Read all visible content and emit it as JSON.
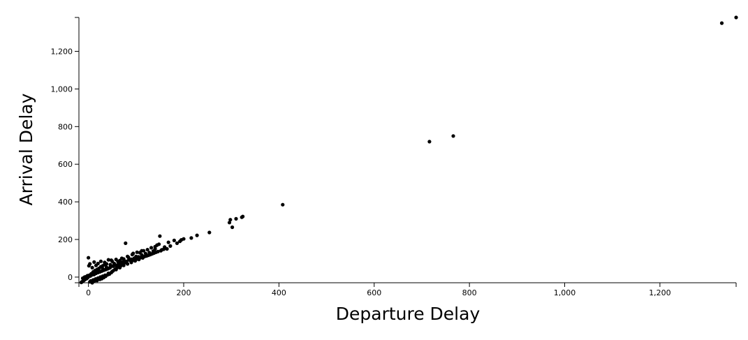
{
  "chart_data": {
    "type": "scatter",
    "title": "",
    "xlabel": "Departure Delay",
    "ylabel": "Arrival Delay",
    "xlim": [
      -20,
      1360
    ],
    "ylim": [
      -30,
      1380
    ],
    "x_ticks": [
      0,
      200,
      400,
      600,
      800,
      1000,
      1200
    ],
    "x_tick_labels": [
      "0",
      "200",
      "400",
      "600",
      "800",
      "1,000",
      "1,200"
    ],
    "y_ticks": [
      0,
      200,
      400,
      600,
      800,
      1000,
      1200
    ],
    "y_tick_labels": [
      "0",
      "200",
      "400",
      "600",
      "800",
      "1,000",
      "1,200"
    ],
    "grid": false,
    "legend": "none",
    "point_color": "#000000",
    "points": [
      [
        1360,
        1380
      ],
      [
        1330,
        1350
      ],
      [
        766,
        750
      ],
      [
        716,
        720
      ],
      [
        408,
        385
      ],
      [
        324,
        322
      ],
      [
        322,
        318
      ],
      [
        310,
        310
      ],
      [
        298,
        305
      ],
      [
        302,
        265
      ],
      [
        296,
        290
      ],
      [
        254,
        237
      ],
      [
        228,
        222
      ],
      [
        216,
        208
      ],
      [
        200,
        203
      ],
      [
        195,
        198
      ],
      [
        192,
        190
      ],
      [
        186,
        180
      ],
      [
        180,
        195
      ],
      [
        168,
        185
      ],
      [
        150,
        218
      ],
      [
        148,
        175
      ],
      [
        144,
        170
      ],
      [
        140,
        150
      ],
      [
        136,
        138
      ],
      [
        128,
        130
      ],
      [
        120,
        125
      ],
      [
        112,
        118
      ],
      [
        105,
        108
      ],
      [
        100,
        110
      ],
      [
        96,
        100
      ],
      [
        90,
        95
      ],
      [
        85,
        92
      ],
      [
        78,
        180
      ],
      [
        76,
        85
      ],
      [
        72,
        80
      ],
      [
        68,
        74
      ],
      [
        64,
        68
      ],
      [
        60,
        64
      ],
      [
        56,
        62
      ],
      [
        52,
        58
      ],
      [
        48,
        90
      ],
      [
        46,
        52
      ],
      [
        44,
        48
      ],
      [
        40,
        44
      ],
      [
        36,
        40
      ],
      [
        32,
        36
      ],
      [
        28,
        32
      ],
      [
        24,
        28
      ],
      [
        20,
        24
      ],
      [
        16,
        20
      ],
      [
        12,
        14
      ],
      [
        8,
        12
      ],
      [
        4,
        6
      ],
      [
        0,
        103
      ],
      [
        0,
        2
      ],
      [
        -2,
        -4
      ],
      [
        -4,
        -8
      ],
      [
        -6,
        -10
      ],
      [
        -8,
        -14
      ],
      [
        -10,
        -18
      ],
      [
        -12,
        -22
      ],
      [
        -14,
        -26
      ],
      [
        -15,
        -28
      ],
      [
        -5,
        2
      ],
      [
        2,
        10
      ],
      [
        6,
        18
      ],
      [
        10,
        28
      ],
      [
        14,
        35
      ],
      [
        18,
        40
      ],
      [
        22,
        46
      ],
      [
        26,
        55
      ],
      [
        30,
        60
      ],
      [
        34,
        66
      ],
      [
        38,
        70
      ],
      [
        5,
        -20
      ],
      [
        10,
        -15
      ],
      [
        15,
        -10
      ],
      [
        20,
        -5
      ],
      [
        25,
        0
      ],
      [
        30,
        5
      ],
      [
        35,
        10
      ],
      [
        42,
        20
      ],
      [
        50,
        30
      ],
      [
        58,
        40
      ],
      [
        66,
        50
      ],
      [
        74,
        62
      ],
      [
        82,
        70
      ],
      [
        90,
        78
      ],
      [
        98,
        86
      ],
      [
        106,
        94
      ],
      [
        114,
        102
      ],
      [
        122,
        112
      ],
      [
        130,
        120
      ],
      [
        138,
        128
      ],
      [
        146,
        136
      ],
      [
        154,
        145
      ],
      [
        160,
        160
      ],
      [
        165,
        150
      ],
      [
        172,
        165
      ],
      [
        116,
        140
      ],
      [
        108,
        130
      ],
      [
        92,
        120
      ],
      [
        84,
        105
      ],
      [
        70,
        100
      ],
      [
        62,
        82
      ],
      [
        54,
        72
      ],
      [
        46,
        66
      ],
      [
        38,
        52
      ],
      [
        30,
        44
      ],
      [
        22,
        34
      ],
      [
        14,
        26
      ],
      [
        6,
        16
      ],
      [
        -2,
        8
      ],
      [
        -8,
        0
      ],
      [
        -12,
        -6
      ],
      [
        3,
        -25
      ],
      [
        8,
        -30
      ],
      [
        12,
        -22
      ],
      [
        18,
        -18
      ],
      [
        24,
        -12
      ],
      [
        28,
        -8
      ],
      [
        32,
        -2
      ],
      [
        36,
        4
      ],
      [
        40,
        12
      ],
      [
        44,
        16
      ],
      [
        48,
        24
      ],
      [
        52,
        34
      ],
      [
        56,
        42
      ],
      [
        60,
        50
      ],
      [
        64,
        56
      ],
      [
        68,
        60
      ],
      [
        72,
        70
      ],
      [
        76,
        76
      ],
      [
        80,
        84
      ],
      [
        88,
        88
      ],
      [
        94,
        90
      ],
      [
        102,
        96
      ],
      [
        110,
        104
      ],
      [
        118,
        110
      ],
      [
        126,
        116
      ],
      [
        134,
        124
      ],
      [
        142,
        132
      ],
      [
        152,
        140
      ],
      [
        158,
        148
      ],
      [
        1,
        60
      ],
      [
        3,
        70
      ],
      [
        8,
        50
      ],
      [
        12,
        80
      ],
      [
        16,
        62
      ],
      [
        20,
        72
      ],
      [
        26,
        84
      ],
      [
        34,
        78
      ],
      [
        42,
        92
      ],
      [
        50,
        84
      ],
      [
        58,
        94
      ],
      [
        66,
        88
      ],
      [
        74,
        96
      ],
      [
        82,
        110
      ],
      [
        94,
        126
      ],
      [
        102,
        132
      ],
      [
        112,
        140
      ],
      [
        124,
        146
      ],
      [
        132,
        156
      ],
      [
        140,
        162
      ]
    ]
  }
}
